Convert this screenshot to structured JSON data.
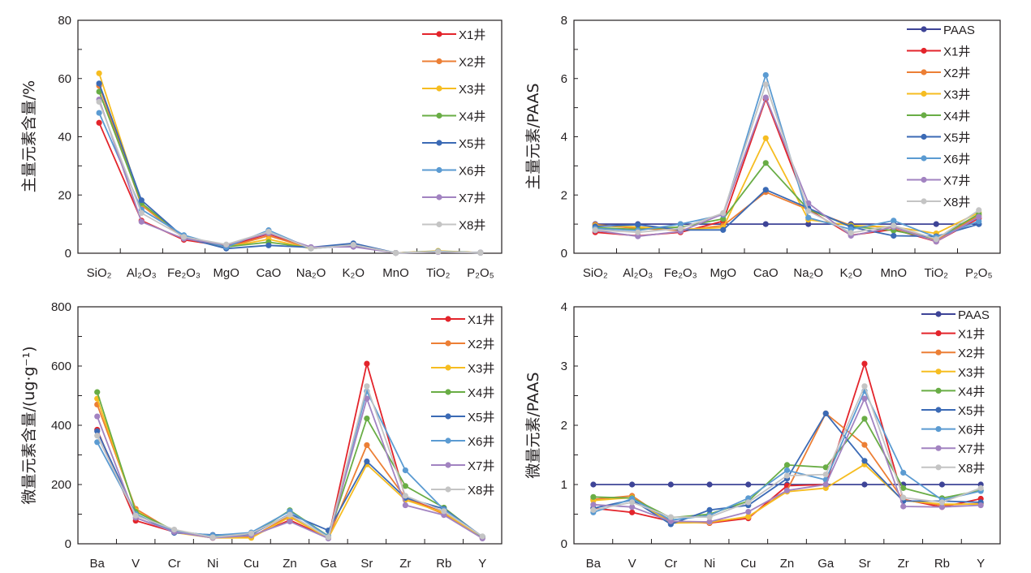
{
  "figure": {
    "wells": [
      "X1井",
      "X2井",
      "X3井",
      "X4井",
      "X5井",
      "X6井",
      "X7井",
      "X8井"
    ]
  },
  "series_colors": {
    "PAAS": "#3e4497",
    "X1井": "#e3242b",
    "X2井": "#ec7f35",
    "X3井": "#f6bd21",
    "X4井": "#69ad45",
    "X5井": "#3b6ab5",
    "X6井": "#5b9bd2",
    "X7井": "#a283c1",
    "X8井": "#c4c4c4"
  },
  "chart_data": [
    {
      "id": "major-content",
      "type": "line",
      "title": "",
      "xlabel": "",
      "ylabel": "主量元素含量/%",
      "ylim": [
        0,
        80
      ],
      "yticks": [
        0,
        20,
        40,
        60,
        80
      ],
      "minor_ytick_step": 10,
      "grid": false,
      "legend": "top-right",
      "categories": [
        "SiO₂",
        "Al₂O₃",
        "Fe₂O₃",
        "MgO",
        "CaO",
        "Na₂O",
        "K₂O",
        "MnO",
        "TiO₂",
        "P₂O₅"
      ],
      "series": [
        {
          "name": "X1井",
          "values": [
            44.8,
            11.2,
            4.6,
            2.4,
            6.6,
            1.8,
            2.6,
            0.1,
            0.6,
            0.2
          ]
        },
        {
          "name": "X2井",
          "values": [
            57.5,
            16.5,
            5.2,
            2.0,
            6.0,
            1.7,
            2.8,
            0.1,
            0.7,
            0.2
          ]
        },
        {
          "name": "X3井",
          "values": [
            61.8,
            17.0,
            5.6,
            2.1,
            4.8,
            1.6,
            2.9,
            0.1,
            0.8,
            0.2
          ]
        },
        {
          "name": "X4井",
          "values": [
            55.5,
            17.2,
            5.6,
            2.2,
            3.8,
            1.8,
            3.0,
            0.1,
            0.6,
            0.2
          ]
        },
        {
          "name": "X5井",
          "values": [
            58.3,
            18.2,
            5.4,
            1.6,
            2.7,
            2.0,
            3.4,
            0.1,
            0.5,
            0.2
          ]
        },
        {
          "name": "X6井",
          "values": [
            48.2,
            15.0,
            6.2,
            2.1,
            7.9,
            1.6,
            2.8,
            0.1,
            0.6,
            0.2
          ]
        },
        {
          "name": "X7井",
          "values": [
            52.8,
            10.8,
            5.0,
            2.9,
            6.9,
            2.1,
            2.2,
            0.1,
            0.4,
            0.2
          ]
        },
        {
          "name": "X8井",
          "values": [
            52.0,
            13.8,
            5.6,
            3.0,
            7.4,
            1.6,
            2.9,
            0.1,
            0.5,
            0.2
          ]
        }
      ]
    },
    {
      "id": "major-paas",
      "type": "line",
      "title": "",
      "xlabel": "",
      "ylabel": "主量元素/PAAS",
      "ylim": [
        0,
        8
      ],
      "yticks": [
        0,
        2,
        4,
        6,
        8
      ],
      "minor_ytick_step": 1,
      "grid": false,
      "legend": "top-right",
      "categories": [
        "SiO₂",
        "Al₂O₃",
        "Fe₂O₃",
        "MgO",
        "CaO",
        "Na₂O",
        "K₂O",
        "MnO",
        "TiO₂",
        "P₂O₅"
      ],
      "series": [
        {
          "name": "PAAS",
          "values": [
            1,
            1,
            1,
            1,
            1,
            1,
            1,
            1,
            1,
            1
          ]
        },
        {
          "name": "X1井",
          "values": [
            0.72,
            0.6,
            0.72,
            1.1,
            5.3,
            1.5,
            0.62,
            0.82,
            0.4,
            1.2
          ]
        },
        {
          "name": "X2井",
          "values": [
            0.98,
            0.85,
            0.78,
            0.95,
            2.1,
            1.5,
            0.95,
            0.88,
            0.45,
            1.3
          ]
        },
        {
          "name": "X3井",
          "values": [
            0.95,
            0.9,
            0.82,
            0.88,
            3.95,
            1.15,
            0.95,
            0.9,
            0.68,
            1.4
          ]
        },
        {
          "name": "X4井",
          "values": [
            0.88,
            0.82,
            0.9,
            1.18,
            3.1,
            1.5,
            0.92,
            0.78,
            0.5,
            1.35
          ]
        },
        {
          "name": "X5井",
          "values": [
            0.92,
            0.98,
            0.8,
            0.8,
            2.18,
            1.55,
            0.9,
            0.6,
            0.58,
            1.0
          ]
        },
        {
          "name": "X6井",
          "values": [
            0.85,
            0.78,
            1.0,
            1.32,
            6.12,
            1.22,
            0.82,
            1.12,
            0.55,
            1.1
          ]
        },
        {
          "name": "X7井",
          "values": [
            0.78,
            0.58,
            0.75,
            1.35,
            5.35,
            1.72,
            0.6,
            0.9,
            0.4,
            1.25
          ]
        },
        {
          "name": "X8井",
          "values": [
            0.8,
            0.72,
            0.85,
            1.38,
            5.8,
            1.45,
            0.7,
            0.95,
            0.48,
            1.48
          ]
        }
      ]
    },
    {
      "id": "trace-content",
      "type": "line",
      "title": "",
      "xlabel": "",
      "ylabel": "微量元素含量/(ug·g⁻¹)",
      "ylim": [
        0,
        800
      ],
      "yticks": [
        0,
        200,
        400,
        600,
        800
      ],
      "minor_ytick_step": 100,
      "grid": false,
      "legend": "top-right",
      "categories": [
        "Ba",
        "V",
        "Cr",
        "Ni",
        "Cu",
        "Zn",
        "Ga",
        "Sr",
        "Zr",
        "Rb",
        "Y"
      ],
      "series": [
        {
          "name": "X1井",
          "values": [
            385,
            78,
            40,
            20,
            25,
            80,
            20,
            608,
            155,
            105,
            22
          ]
        },
        {
          "name": "X2井",
          "values": [
            470,
            118,
            40,
            22,
            22,
            95,
            22,
            333,
            155,
            100,
            20
          ]
        },
        {
          "name": "X3井",
          "values": [
            490,
            112,
            38,
            20,
            20,
            90,
            20,
            268,
            148,
            105,
            22
          ]
        },
        {
          "name": "X4井",
          "values": [
            512,
            108,
            45,
            25,
            30,
            113,
            26,
            423,
            195,
            122,
            22
          ]
        },
        {
          "name": "X5井",
          "values": [
            380,
            100,
            37,
            30,
            32,
            100,
            45,
            278,
            155,
            118,
            24
          ]
        },
        {
          "name": "X6井",
          "values": [
            343,
            100,
            42,
            28,
            38,
            110,
            25,
            515,
            248,
            115,
            24
          ]
        },
        {
          "name": "X7井",
          "values": [
            430,
            88,
            40,
            20,
            28,
            75,
            18,
            490,
            130,
            97,
            18
          ]
        },
        {
          "name": "X8井",
          "values": [
            365,
            95,
            48,
            22,
            35,
            98,
            22,
            532,
            162,
            110,
            25
          ]
        }
      ]
    },
    {
      "id": "trace-paas",
      "type": "line",
      "title": "",
      "xlabel": "",
      "ylabel": "微量元素/PAAS",
      "ylim": [
        0,
        4
      ],
      "yticks": [
        0,
        1,
        2,
        3,
        4
      ],
      "minor_ytick_step": 0.5,
      "grid": false,
      "legend": "top-right",
      "categories": [
        "Ba",
        "V",
        "Cr",
        "Ni",
        "Cu",
        "Zn",
        "Ga",
        "Sr",
        "Zr",
        "Rb",
        "Y"
      ],
      "series": [
        {
          "name": "PAAS",
          "values": [
            1,
            1,
            1,
            1,
            1,
            1,
            1,
            1,
            1,
            1,
            1
          ]
        },
        {
          "name": "X1井",
          "values": [
            0.6,
            0.53,
            0.38,
            0.35,
            0.43,
            0.98,
            1.0,
            3.04,
            0.75,
            0.62,
            0.76
          ]
        },
        {
          "name": "X2井",
          "values": [
            0.75,
            0.81,
            0.37,
            0.37,
            0.45,
            0.9,
            2.2,
            1.67,
            0.74,
            0.65,
            0.68
          ]
        },
        {
          "name": "X3井",
          "values": [
            0.73,
            0.78,
            0.35,
            0.36,
            0.46,
            0.88,
            0.94,
            1.34,
            0.73,
            0.67,
            0.67
          ]
        },
        {
          "name": "X4井",
          "values": [
            0.79,
            0.77,
            0.44,
            0.5,
            0.72,
            1.33,
            1.29,
            2.11,
            0.94,
            0.77,
            0.9
          ]
        },
        {
          "name": "X5井",
          "values": [
            0.6,
            0.74,
            0.33,
            0.57,
            0.65,
            1.1,
            2.2,
            1.4,
            0.72,
            0.72,
            0.7
          ]
        },
        {
          "name": "X6井",
          "values": [
            0.53,
            0.76,
            0.4,
            0.48,
            0.77,
            1.24,
            1.08,
            2.58,
            1.2,
            0.74,
            0.89
          ]
        },
        {
          "name": "X7井",
          "values": [
            0.66,
            0.62,
            0.38,
            0.37,
            0.54,
            0.9,
            1.0,
            2.45,
            0.63,
            0.62,
            0.65
          ]
        },
        {
          "name": "X8井",
          "values": [
            0.57,
            0.7,
            0.45,
            0.45,
            0.7,
            1.15,
            1.17,
            2.66,
            0.78,
            0.7,
            0.94
          ]
        }
      ]
    }
  ]
}
